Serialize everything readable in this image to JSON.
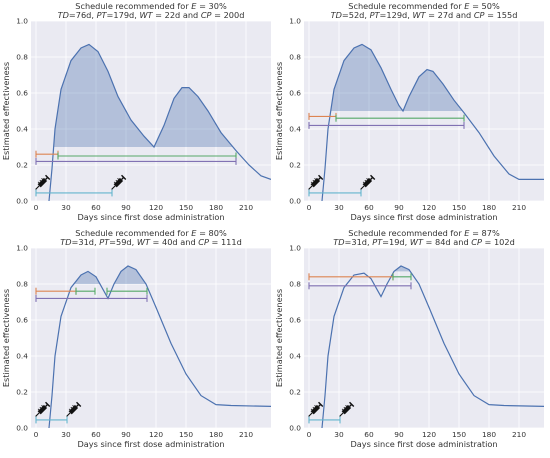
{
  "figure_colors": {
    "plot_bg": "#eaeaf2",
    "grid": "#ffffff",
    "curve": "#4c72b0",
    "fill": "#4c72b0",
    "bracket_orange": "#dd8452",
    "bracket_green": "#55a868",
    "bracket_purple": "#8172b3",
    "bracket_cyan": "#64b5cd",
    "syringe": "#111111"
  },
  "icons": [
    "syringe-icon"
  ],
  "chart_data": [
    {
      "type": "line",
      "title_line1": "Schedule recommended for E = 30%",
      "title_line2": "TD=76d, PT=179d, WT = 22d and CP = 200d",
      "xlabel": "Days since first dose administration",
      "ylabel": "Estimated effectiveness",
      "xlim": [
        -5,
        235
      ],
      "ylim": [
        0,
        1.0
      ],
      "xticks": [
        0,
        30,
        60,
        90,
        120,
        150,
        180,
        210
      ],
      "yticks": [
        0.0,
        0.2,
        0.4,
        0.6,
        0.8,
        1.0
      ],
      "grid": true,
      "threshold": 0.3,
      "doses": [
        0,
        76
      ],
      "curve": [
        [
          13,
          0
        ],
        [
          16,
          0.18
        ],
        [
          19,
          0.4
        ],
        [
          25,
          0.62
        ],
        [
          35,
          0.78
        ],
        [
          45,
          0.85
        ],
        [
          53,
          0.87
        ],
        [
          62,
          0.83
        ],
        [
          72,
          0.72
        ],
        [
          82,
          0.58
        ],
        [
          95,
          0.45
        ],
        [
          108,
          0.36
        ],
        [
          118,
          0.3
        ],
        [
          128,
          0.42
        ],
        [
          138,
          0.57
        ],
        [
          146,
          0.63
        ],
        [
          153,
          0.63
        ],
        [
          162,
          0.58
        ],
        [
          172,
          0.5
        ],
        [
          185,
          0.38
        ],
        [
          200,
          0.28
        ],
        [
          213,
          0.2
        ],
        [
          225,
          0.14
        ],
        [
          235,
          0.12
        ]
      ],
      "brackets": [
        {
          "color": "orange",
          "start": 0,
          "end": 22,
          "y": 0.26
        },
        {
          "color": "green",
          "start": 22,
          "end": 200,
          "y": 0.25
        },
        {
          "color": "purple",
          "start": 0,
          "end": 200,
          "y": 0.22
        },
        {
          "color": "cyan",
          "start": 0,
          "end": 76,
          "y": 0.045
        }
      ]
    },
    {
      "type": "line",
      "title_line1": "Schedule recommended for E = 50%",
      "title_line2": "TD=52d, PT=129d, WT = 27d and CP = 155d",
      "xlabel": "Days since first dose administration",
      "ylabel": "Estimated effectiveness",
      "xlim": [
        -5,
        235
      ],
      "ylim": [
        0,
        1.0
      ],
      "xticks": [
        0,
        30,
        60,
        90,
        120,
        150,
        180,
        210
      ],
      "yticks": [
        0.0,
        0.2,
        0.4,
        0.6,
        0.8,
        1.0
      ],
      "grid": true,
      "threshold": 0.5,
      "doses": [
        0,
        52
      ],
      "curve": [
        [
          13,
          0
        ],
        [
          16,
          0.18
        ],
        [
          19,
          0.4
        ],
        [
          25,
          0.62
        ],
        [
          35,
          0.78
        ],
        [
          45,
          0.85
        ],
        [
          53,
          0.87
        ],
        [
          62,
          0.84
        ],
        [
          72,
          0.74
        ],
        [
          82,
          0.62
        ],
        [
          90,
          0.53
        ],
        [
          94,
          0.5
        ],
        [
          100,
          0.58
        ],
        [
          110,
          0.69
        ],
        [
          118,
          0.73
        ],
        [
          124,
          0.72
        ],
        [
          134,
          0.65
        ],
        [
          145,
          0.56
        ],
        [
          155,
          0.49
        ],
        [
          170,
          0.38
        ],
        [
          185,
          0.25
        ],
        [
          200,
          0.15
        ],
        [
          210,
          0.12
        ],
        [
          235,
          0.12
        ]
      ],
      "brackets": [
        {
          "color": "orange",
          "start": 0,
          "end": 27,
          "y": 0.47
        },
        {
          "color": "green",
          "start": 27,
          "end": 155,
          "y": 0.46
        },
        {
          "color": "purple",
          "start": 0,
          "end": 155,
          "y": 0.42
        },
        {
          "color": "cyan",
          "start": 0,
          "end": 52,
          "y": 0.045
        }
      ]
    },
    {
      "type": "line",
      "title_line1": "Schedule recommended for E = 80%",
      "title_line2": "TD=31d, PT=59d, WT = 40d and CP = 111d",
      "xlabel": "Days since first dose administration",
      "ylabel": "Estimated effectiveness",
      "xlim": [
        -5,
        235
      ],
      "ylim": [
        0,
        1.0
      ],
      "xticks": [
        0,
        30,
        60,
        90,
        120,
        150,
        180,
        210
      ],
      "yticks": [
        0.0,
        0.2,
        0.4,
        0.6,
        0.8,
        1.0
      ],
      "grid": true,
      "threshold": 0.8,
      "doses": [
        0,
        31
      ],
      "curve": [
        [
          13,
          0
        ],
        [
          16,
          0.18
        ],
        [
          19,
          0.4
        ],
        [
          25,
          0.62
        ],
        [
          35,
          0.78
        ],
        [
          45,
          0.85
        ],
        [
          52,
          0.87
        ],
        [
          60,
          0.84
        ],
        [
          67,
          0.77
        ],
        [
          72,
          0.72
        ],
        [
          78,
          0.8
        ],
        [
          85,
          0.87
        ],
        [
          92,
          0.9
        ],
        [
          100,
          0.88
        ],
        [
          110,
          0.8
        ],
        [
          120,
          0.67
        ],
        [
          135,
          0.47
        ],
        [
          150,
          0.3
        ],
        [
          165,
          0.18
        ],
        [
          180,
          0.13
        ],
        [
          195,
          0.125
        ],
        [
          235,
          0.12
        ]
      ],
      "brackets": [
        {
          "color": "orange",
          "start": 0,
          "end": 40,
          "y": 0.76
        },
        {
          "color": "green",
          "start": 40,
          "end": 59,
          "y": 0.76
        },
        {
          "color": "green",
          "start": 71,
          "end": 111,
          "y": 0.76
        },
        {
          "color": "purple",
          "start": 0,
          "end": 111,
          "y": 0.72
        },
        {
          "color": "cyan",
          "start": 0,
          "end": 31,
          "y": 0.045
        }
      ]
    },
    {
      "type": "line",
      "title_line1": "Schedule recommended for E = 87%",
      "title_line2": "TD=31d, PT=19d, WT = 84d and CP = 102d",
      "xlabel": "Days since first dose administration",
      "ylabel": "Estimated effectiveness",
      "xlim": [
        -5,
        235
      ],
      "ylim": [
        0,
        1.0
      ],
      "xticks": [
        0,
        30,
        60,
        90,
        120,
        150,
        180,
        210
      ],
      "yticks": [
        0.0,
        0.2,
        0.4,
        0.6,
        0.8,
        1.0
      ],
      "grid": true,
      "threshold": 0.87,
      "doses": [
        0,
        31
      ],
      "curve": [
        [
          13,
          0
        ],
        [
          16,
          0.18
        ],
        [
          19,
          0.4
        ],
        [
          25,
          0.62
        ],
        [
          35,
          0.78
        ],
        [
          45,
          0.85
        ],
        [
          55,
          0.86
        ],
        [
          62,
          0.83
        ],
        [
          68,
          0.77
        ],
        [
          72,
          0.73
        ],
        [
          78,
          0.8
        ],
        [
          85,
          0.87
        ],
        [
          92,
          0.9
        ],
        [
          100,
          0.88
        ],
        [
          110,
          0.8
        ],
        [
          120,
          0.67
        ],
        [
          135,
          0.47
        ],
        [
          150,
          0.3
        ],
        [
          165,
          0.18
        ],
        [
          180,
          0.13
        ],
        [
          195,
          0.125
        ],
        [
          235,
          0.12
        ]
      ],
      "brackets": [
        {
          "color": "orange",
          "start": 0,
          "end": 84,
          "y": 0.84
        },
        {
          "color": "green",
          "start": 84,
          "end": 102,
          "y": 0.84
        },
        {
          "color": "purple",
          "start": 0,
          "end": 102,
          "y": 0.79
        },
        {
          "color": "cyan",
          "start": 0,
          "end": 31,
          "y": 0.045
        }
      ]
    }
  ]
}
